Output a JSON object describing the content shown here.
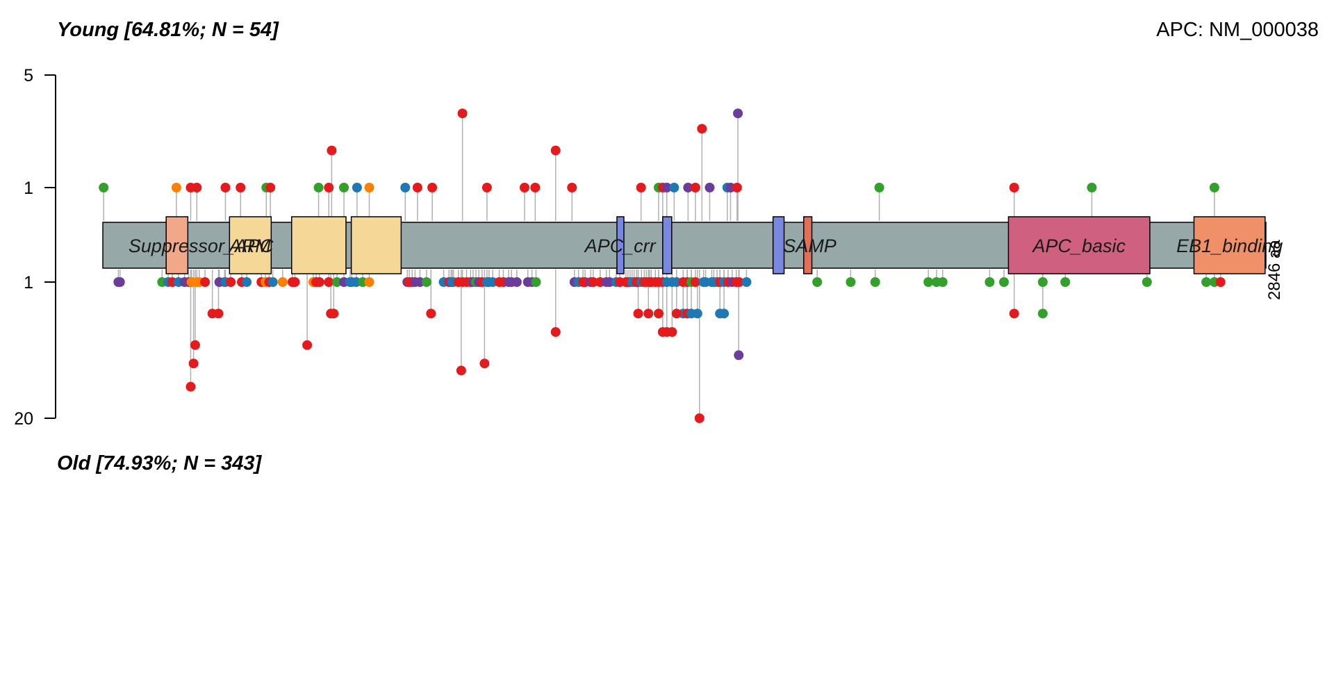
{
  "titles": {
    "top_group": "Young [64.81%; N = 54]",
    "bottom_group": "Old [74.93%; N = 343]",
    "gene": "APC: NM_000038",
    "protein_length": "2846 aa"
  },
  "chart_data": {
    "type": "lollipop",
    "protein_length": 2846,
    "axis": {
      "top_ticks": [
        "5",
        "1"
      ],
      "bottom_ticks": [
        "1",
        "20"
      ]
    },
    "domains": [
      {
        "name": "Suppressor_APC",
        "start": 0,
        "end": 2846,
        "color": "#96a8a8"
      },
      {
        "name": "",
        "start": 155,
        "end": 208,
        "color": "#f0a888"
      },
      {
        "name": "ARM",
        "start": 310,
        "end": 412,
        "color": "#f5d898"
      },
      {
        "name": "",
        "start": 462,
        "end": 595,
        "color": "#f5d898"
      },
      {
        "name": "",
        "start": 608,
        "end": 730,
        "color": "#f5d898"
      },
      {
        "name": "APC_crr",
        "start": 1258,
        "end": 1275,
        "color": "#7888e0"
      },
      {
        "name": "",
        "start": 1370,
        "end": 1392,
        "color": "#7888e0"
      },
      {
        "name": "",
        "start": 1640,
        "end": 1667,
        "color": "#7888e0"
      },
      {
        "name": "SAMP",
        "start": 1715,
        "end": 1735,
        "color": "#e07058"
      },
      {
        "name": "APC_basic",
        "start": 2216,
        "end": 2562,
        "color": "#d06080"
      },
      {
        "name": "EB1_binding",
        "start": 2670,
        "end": 2844,
        "color": "#f09068"
      }
    ],
    "domain_label_positions": [
      {
        "name": "Suppressor_APC",
        "pos": 240
      },
      {
        "name": "ARM",
        "pos": 360
      },
      {
        "name": "APC_crr",
        "pos": 1266
      },
      {
        "name": "SAMP",
        "pos": 1730
      },
      {
        "name": "APC_basic",
        "pos": 2389
      },
      {
        "name": "EB1_binding",
        "pos": 2757
      }
    ],
    "series_colors": {
      "red": "#e41a1c",
      "green": "#33a02c",
      "blue": "#1f78b4",
      "purple": "#6a3d9a",
      "orange": "#ff7f00"
    },
    "top_mutations": [
      {
        "pos": 2,
        "count": 1,
        "color": "green"
      },
      {
        "pos": 180,
        "count": 1,
        "color": "orange"
      },
      {
        "pos": 215,
        "count": 1,
        "color": "red"
      },
      {
        "pos": 230,
        "count": 1,
        "color": "red"
      },
      {
        "pos": 300,
        "count": 1,
        "color": "red"
      },
      {
        "pos": 337,
        "count": 1,
        "color": "red"
      },
      {
        "pos": 400,
        "count": 1,
        "color": "green"
      },
      {
        "pos": 410,
        "count": 1,
        "color": "red"
      },
      {
        "pos": 528,
        "count": 1,
        "color": "green"
      },
      {
        "pos": 553,
        "count": 1,
        "color": "red"
      },
      {
        "pos": 560,
        "count": 2,
        "color": "red"
      },
      {
        "pos": 590,
        "count": 1,
        "color": "green"
      },
      {
        "pos": 622,
        "count": 1,
        "color": "blue"
      },
      {
        "pos": 652,
        "count": 1,
        "color": "orange"
      },
      {
        "pos": 740,
        "count": 1,
        "color": "blue"
      },
      {
        "pos": 770,
        "count": 1,
        "color": "red"
      },
      {
        "pos": 806,
        "count": 1,
        "color": "red"
      },
      {
        "pos": 880,
        "count": 4,
        "color": "red"
      },
      {
        "pos": 940,
        "count": 1,
        "color": "red"
      },
      {
        "pos": 1032,
        "count": 1,
        "color": "red"
      },
      {
        "pos": 1058,
        "count": 1,
        "color": "red"
      },
      {
        "pos": 1108,
        "count": 2,
        "color": "red"
      },
      {
        "pos": 1148,
        "count": 1,
        "color": "red"
      },
      {
        "pos": 1317,
        "count": 1,
        "color": "red"
      },
      {
        "pos": 1360,
        "count": 1,
        "color": "green"
      },
      {
        "pos": 1370,
        "count": 1,
        "color": "red"
      },
      {
        "pos": 1380,
        "count": 1,
        "color": "purple"
      },
      {
        "pos": 1398,
        "count": 1,
        "color": "blue"
      },
      {
        "pos": 1432,
        "count": 1,
        "color": "purple"
      },
      {
        "pos": 1450,
        "count": 1,
        "color": "red"
      },
      {
        "pos": 1466,
        "count": 3,
        "color": "red"
      },
      {
        "pos": 1485,
        "count": 1,
        "color": "purple"
      },
      {
        "pos": 1528,
        "count": 1,
        "color": "blue"
      },
      {
        "pos": 1536,
        "count": 1,
        "color": "purple"
      },
      {
        "pos": 1552,
        "count": 1,
        "color": "red"
      },
      {
        "pos": 1554,
        "count": 4,
        "color": "purple"
      },
      {
        "pos": 1900,
        "count": 1,
        "color": "green"
      },
      {
        "pos": 2230,
        "count": 1,
        "color": "red"
      },
      {
        "pos": 2420,
        "count": 1,
        "color": "green"
      },
      {
        "pos": 2720,
        "count": 1,
        "color": "green"
      }
    ],
    "bottom_mutations": [
      {
        "pos": 38,
        "count": 1,
        "color": "purple"
      },
      {
        "pos": 42,
        "count": 1,
        "color": "purple"
      },
      {
        "pos": 145,
        "count": 1,
        "color": "green"
      },
      {
        "pos": 160,
        "count": 1,
        "color": "blue"
      },
      {
        "pos": 170,
        "count": 1,
        "color": "red"
      },
      {
        "pos": 185,
        "count": 1,
        "color": "blue"
      },
      {
        "pos": 200,
        "count": 1,
        "color": "purple"
      },
      {
        "pos": 210,
        "count": 1,
        "color": "purple"
      },
      {
        "pos": 216,
        "count": 1,
        "color": "red"
      },
      {
        "pos": 217,
        "count": 1,
        "color": "orange"
      },
      {
        "pos": 215,
        "count": 10,
        "color": "red"
      },
      {
        "pos": 222,
        "count": 6,
        "color": "red"
      },
      {
        "pos": 226,
        "count": 4,
        "color": "red"
      },
      {
        "pos": 230,
        "count": 1,
        "color": "orange"
      },
      {
        "pos": 236,
        "count": 1,
        "color": "orange"
      },
      {
        "pos": 250,
        "count": 1,
        "color": "red"
      },
      {
        "pos": 268,
        "count": 2,
        "color": "red"
      },
      {
        "pos": 283,
        "count": 2,
        "color": "red"
      },
      {
        "pos": 298,
        "count": 1,
        "color": "red"
      },
      {
        "pos": 285,
        "count": 1,
        "color": "purple"
      },
      {
        "pos": 300,
        "count": 1,
        "color": "blue"
      },
      {
        "pos": 313,
        "count": 1,
        "color": "red"
      },
      {
        "pos": 340,
        "count": 1,
        "color": "red"
      },
      {
        "pos": 352,
        "count": 1,
        "color": "blue"
      },
      {
        "pos": 388,
        "count": 1,
        "color": "red"
      },
      {
        "pos": 398,
        "count": 1,
        "color": "orange"
      },
      {
        "pos": 407,
        "count": 1,
        "color": "red"
      },
      {
        "pos": 416,
        "count": 1,
        "color": "blue"
      },
      {
        "pos": 440,
        "count": 1,
        "color": "orange"
      },
      {
        "pos": 464,
        "count": 1,
        "color": "red"
      },
      {
        "pos": 470,
        "count": 1,
        "color": "red"
      },
      {
        "pos": 500,
        "count": 4,
        "color": "red"
      },
      {
        "pos": 515,
        "count": 1,
        "color": "orange"
      },
      {
        "pos": 522,
        "count": 1,
        "color": "red"
      },
      {
        "pos": 530,
        "count": 1,
        "color": "red"
      },
      {
        "pos": 553,
        "count": 1,
        "color": "red"
      },
      {
        "pos": 558,
        "count": 2,
        "color": "red"
      },
      {
        "pos": 565,
        "count": 2,
        "color": "red"
      },
      {
        "pos": 573,
        "count": 1,
        "color": "green"
      },
      {
        "pos": 590,
        "count": 1,
        "color": "purple"
      },
      {
        "pos": 605,
        "count": 1,
        "color": "blue"
      },
      {
        "pos": 609,
        "count": 1,
        "color": "blue"
      },
      {
        "pos": 620,
        "count": 1,
        "color": "blue"
      },
      {
        "pos": 636,
        "count": 1,
        "color": "green"
      },
      {
        "pos": 652,
        "count": 1,
        "color": "orange"
      },
      {
        "pos": 745,
        "count": 1,
        "color": "purple"
      },
      {
        "pos": 750,
        "count": 1,
        "color": "red"
      },
      {
        "pos": 757,
        "count": 1,
        "color": "red"
      },
      {
        "pos": 764,
        "count": 1,
        "color": "purple"
      },
      {
        "pos": 776,
        "count": 1,
        "color": "purple"
      },
      {
        "pos": 792,
        "count": 1,
        "color": "green"
      },
      {
        "pos": 803,
        "count": 2,
        "color": "red"
      },
      {
        "pos": 834,
        "count": 1,
        "color": "blue"
      },
      {
        "pos": 847,
        "count": 1,
        "color": "red"
      },
      {
        "pos": 852,
        "count": 1,
        "color": "purple"
      },
      {
        "pos": 855,
        "count": 1,
        "color": "blue"
      },
      {
        "pos": 858,
        "count": 1,
        "color": "blue"
      },
      {
        "pos": 870,
        "count": 1,
        "color": "red"
      },
      {
        "pos": 877,
        "count": 7,
        "color": "red"
      },
      {
        "pos": 880,
        "count": 1,
        "color": "red"
      },
      {
        "pos": 890,
        "count": 1,
        "color": "red"
      },
      {
        "pos": 900,
        "count": 1,
        "color": "red"
      },
      {
        "pos": 906,
        "count": 1,
        "color": "purple"
      },
      {
        "pos": 913,
        "count": 1,
        "color": "green"
      },
      {
        "pos": 920,
        "count": 1,
        "color": "purple"
      },
      {
        "pos": 928,
        "count": 1,
        "color": "red"
      },
      {
        "pos": 934,
        "count": 6,
        "color": "red"
      },
      {
        "pos": 940,
        "count": 1,
        "color": "blue"
      },
      {
        "pos": 945,
        "count": 1,
        "color": "blue"
      },
      {
        "pos": 954,
        "count": 1,
        "color": "blue"
      },
      {
        "pos": 970,
        "count": 1,
        "color": "red"
      },
      {
        "pos": 980,
        "count": 1,
        "color": "red"
      },
      {
        "pos": 993,
        "count": 1,
        "color": "purple"
      },
      {
        "pos": 1000,
        "count": 1,
        "color": "purple"
      },
      {
        "pos": 1013,
        "count": 1,
        "color": "purple"
      },
      {
        "pos": 1040,
        "count": 1,
        "color": "purple"
      },
      {
        "pos": 1050,
        "count": 1,
        "color": "purple"
      },
      {
        "pos": 1060,
        "count": 1,
        "color": "green"
      },
      {
        "pos": 1108,
        "count": 3,
        "color": "red"
      },
      {
        "pos": 1154,
        "count": 1,
        "color": "purple"
      },
      {
        "pos": 1164,
        "count": 1,
        "color": "blue"
      },
      {
        "pos": 1175,
        "count": 1,
        "color": "red"
      },
      {
        "pos": 1180,
        "count": 1,
        "color": "red"
      },
      {
        "pos": 1194,
        "count": 1,
        "color": "purple"
      },
      {
        "pos": 1200,
        "count": 1,
        "color": "red"
      },
      {
        "pos": 1217,
        "count": 1,
        "color": "red"
      },
      {
        "pos": 1232,
        "count": 1,
        "color": "purple"
      },
      {
        "pos": 1240,
        "count": 1,
        "color": "purple"
      },
      {
        "pos": 1256,
        "count": 1,
        "color": "blue"
      },
      {
        "pos": 1265,
        "count": 1,
        "color": "red"
      },
      {
        "pos": 1280,
        "count": 1,
        "color": "red"
      },
      {
        "pos": 1285,
        "count": 1,
        "color": "red"
      },
      {
        "pos": 1290,
        "count": 1,
        "color": "red"
      },
      {
        "pos": 1295,
        "count": 1,
        "color": "blue"
      },
      {
        "pos": 1300,
        "count": 1,
        "color": "blue"
      },
      {
        "pos": 1306,
        "count": 1,
        "color": "red"
      },
      {
        "pos": 1310,
        "count": 1,
        "color": "red"
      },
      {
        "pos": 1318,
        "count": 1,
        "color": "blue"
      },
      {
        "pos": 1325,
        "count": 1,
        "color": "red"
      },
      {
        "pos": 1330,
        "count": 1,
        "color": "red"
      },
      {
        "pos": 1338,
        "count": 1,
        "color": "red"
      },
      {
        "pos": 1342,
        "count": 1,
        "color": "red"
      },
      {
        "pos": 1352,
        "count": 1,
        "color": "red"
      },
      {
        "pos": 1360,
        "count": 1,
        "color": "red"
      },
      {
        "pos": 1370,
        "count": 1,
        "color": "red"
      },
      {
        "pos": 1380,
        "count": 1,
        "color": "blue"
      },
      {
        "pos": 1393,
        "count": 1,
        "color": "blue"
      },
      {
        "pos": 1404,
        "count": 1,
        "color": "blue"
      },
      {
        "pos": 1420,
        "count": 1,
        "color": "red"
      },
      {
        "pos": 1430,
        "count": 1,
        "color": "red"
      },
      {
        "pos": 1440,
        "count": 1,
        "color": "green"
      },
      {
        "pos": 1450,
        "count": 1,
        "color": "red"
      },
      {
        "pos": 1470,
        "count": 1,
        "color": "blue"
      },
      {
        "pos": 1475,
        "count": 1,
        "color": "blue"
      },
      {
        "pos": 1490,
        "count": 1,
        "color": "blue"
      },
      {
        "pos": 1495,
        "count": 1,
        "color": "blue"
      },
      {
        "pos": 1503,
        "count": 1,
        "color": "blue"
      },
      {
        "pos": 1510,
        "count": 1,
        "color": "red"
      },
      {
        "pos": 1520,
        "count": 1,
        "color": "blue"
      },
      {
        "pos": 1530,
        "count": 1,
        "color": "red"
      },
      {
        "pos": 1540,
        "count": 1,
        "color": "purple"
      },
      {
        "pos": 1550,
        "count": 1,
        "color": "red"
      },
      {
        "pos": 1557,
        "count": 1,
        "color": "red"
      },
      {
        "pos": 1575,
        "count": 1,
        "color": "blue"
      },
      {
        "pos": 1360,
        "count": 2,
        "color": "red"
      },
      {
        "pos": 1370,
        "count": 3,
        "color": "red"
      },
      {
        "pos": 1380,
        "count": 3,
        "color": "red"
      },
      {
        "pos": 1393,
        "count": 3,
        "color": "red"
      },
      {
        "pos": 1420,
        "count": 2,
        "color": "blue"
      },
      {
        "pos": 1430,
        "count": 2,
        "color": "red"
      },
      {
        "pos": 1404,
        "count": 2,
        "color": "red"
      },
      {
        "pos": 1440,
        "count": 2,
        "color": "blue"
      },
      {
        "pos": 1455,
        "count": 2,
        "color": "blue"
      },
      {
        "pos": 1460,
        "count": 20,
        "color": "red"
      },
      {
        "pos": 1510,
        "count": 2,
        "color": "blue"
      },
      {
        "pos": 1520,
        "count": 2,
        "color": "blue"
      },
      {
        "pos": 1556,
        "count": 5,
        "color": "purple"
      },
      {
        "pos": 1310,
        "count": 2,
        "color": "red"
      },
      {
        "pos": 1335,
        "count": 2,
        "color": "red"
      },
      {
        "pos": 1748,
        "count": 1,
        "color": "green"
      },
      {
        "pos": 1830,
        "count": 1,
        "color": "green"
      },
      {
        "pos": 1890,
        "count": 1,
        "color": "green"
      },
      {
        "pos": 2020,
        "count": 1,
        "color": "green"
      },
      {
        "pos": 2040,
        "count": 1,
        "color": "green"
      },
      {
        "pos": 2055,
        "count": 1,
        "color": "green"
      },
      {
        "pos": 2170,
        "count": 1,
        "color": "green"
      },
      {
        "pos": 2205,
        "count": 1,
        "color": "green"
      },
      {
        "pos": 2230,
        "count": 2,
        "color": "red"
      },
      {
        "pos": 2300,
        "count": 1,
        "color": "green"
      },
      {
        "pos": 2300,
        "count": 2,
        "color": "green"
      },
      {
        "pos": 2355,
        "count": 1,
        "color": "green"
      },
      {
        "pos": 2555,
        "count": 1,
        "color": "green"
      },
      {
        "pos": 2700,
        "count": 1,
        "color": "green"
      },
      {
        "pos": 2720,
        "count": 1,
        "color": "green"
      },
      {
        "pos": 2735,
        "count": 1,
        "color": "red"
      }
    ]
  }
}
